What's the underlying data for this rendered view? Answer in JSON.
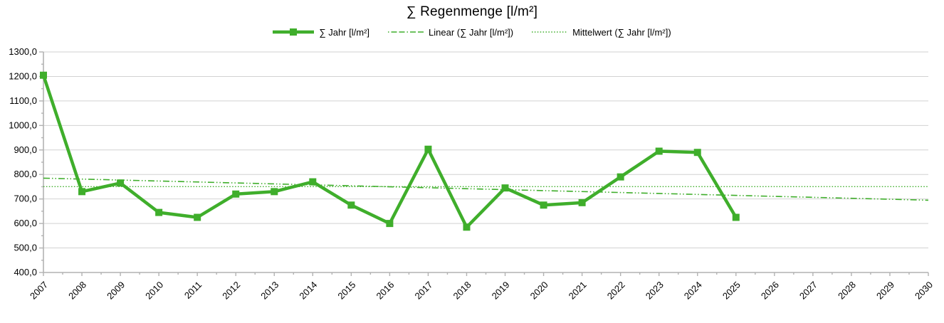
{
  "title": "∑  Regenmenge [l/m²]",
  "legend": [
    {
      "label": "∑ Jahr [l/m²]",
      "style": "solid-with-square-marker"
    },
    {
      "label": "Linear (∑ Jahr [l/m²])",
      "style": "dash-dot"
    },
    {
      "label": "Mittelwert (∑ Jahr [l/m²])",
      "style": "dotted"
    }
  ],
  "colors": {
    "series": "#3FAE2B",
    "grid": "#D2D2D2",
    "axis": "#B2B2B2",
    "text": "#000000"
  },
  "chart_data": {
    "type": "line",
    "title": "∑  Regenmenge [l/m²]",
    "legend_position": "top",
    "grid": "horizontal-major",
    "xlabel": "",
    "ylabel": "",
    "categories": [
      "2007",
      "2008",
      "2009",
      "2010",
      "2011",
      "2012",
      "2013",
      "2014",
      "2015",
      "2016",
      "2017",
      "2018",
      "2019",
      "2020",
      "2021",
      "2022",
      "2023",
      "2024",
      "2025",
      "2026",
      "2027",
      "2028",
      "2029",
      "2030"
    ],
    "y_tick_labels": [
      "1300,0",
      "1200,0",
      "1100,0",
      "1000,0",
      "900,0",
      "800,0",
      "700,0",
      "600,0",
      "500,0",
      "400,0"
    ],
    "ylim": [
      400,
      1300
    ],
    "y_major_step": 100,
    "series": [
      {
        "name": "∑ Jahr [l/m²]",
        "style": "solid-with-square-markers",
        "x": [
          "2007",
          "2008",
          "2009",
          "2010",
          "2011",
          "2012",
          "2013",
          "2014",
          "2015",
          "2016",
          "2017",
          "2018",
          "2019",
          "2020",
          "2021",
          "2022",
          "2023",
          "2024",
          "2025"
        ],
        "values": [
          1205,
          730,
          765,
          645,
          625,
          720,
          730,
          770,
          675,
          600,
          903,
          585,
          745,
          675,
          685,
          790,
          895,
          890,
          625
        ]
      },
      {
        "name": "Linear (∑ Jahr [l/m²])",
        "style": "dash-dot-trendline",
        "x_span": [
          "2007",
          "2030"
        ],
        "endpoint_values": [
          785,
          695
        ]
      },
      {
        "name": "Mittelwert (∑ Jahr [l/m²])",
        "style": "dotted-mean-line",
        "x_span": [
          "2007",
          "2030"
        ],
        "value": 750.4
      }
    ]
  }
}
